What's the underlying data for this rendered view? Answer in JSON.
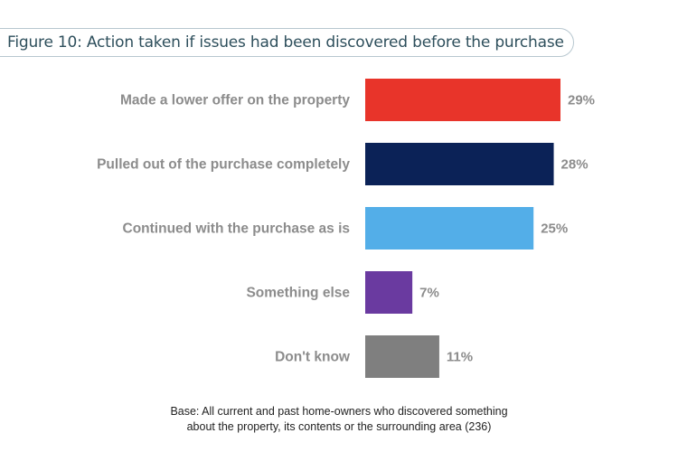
{
  "figure": {
    "title": "Figure 10: Action taken if issues had been discovered before the purchase"
  },
  "chart_data": {
    "type": "bar",
    "orientation": "horizontal",
    "categories": [
      "Made a lower offer on the property",
      "Pulled out of the purchase completely",
      "Continued with the purchase as is",
      "Something else",
      "Don't know"
    ],
    "values": [
      29,
      28,
      25,
      7,
      11
    ],
    "value_labels": [
      "29%",
      "28%",
      "25%",
      "7%",
      "11%"
    ],
    "colors": [
      "#e8342a",
      "#0b2257",
      "#53aee8",
      "#6a3aa0",
      "#7f7f7f"
    ],
    "unit": "%",
    "xlim": [
      0,
      29
    ],
    "grid": false,
    "legend": "none"
  },
  "footnote": {
    "line1": "Base: All current and past home-owners who discovered something",
    "line2": "about the property, its contents or the surrounding area (236)"
  }
}
